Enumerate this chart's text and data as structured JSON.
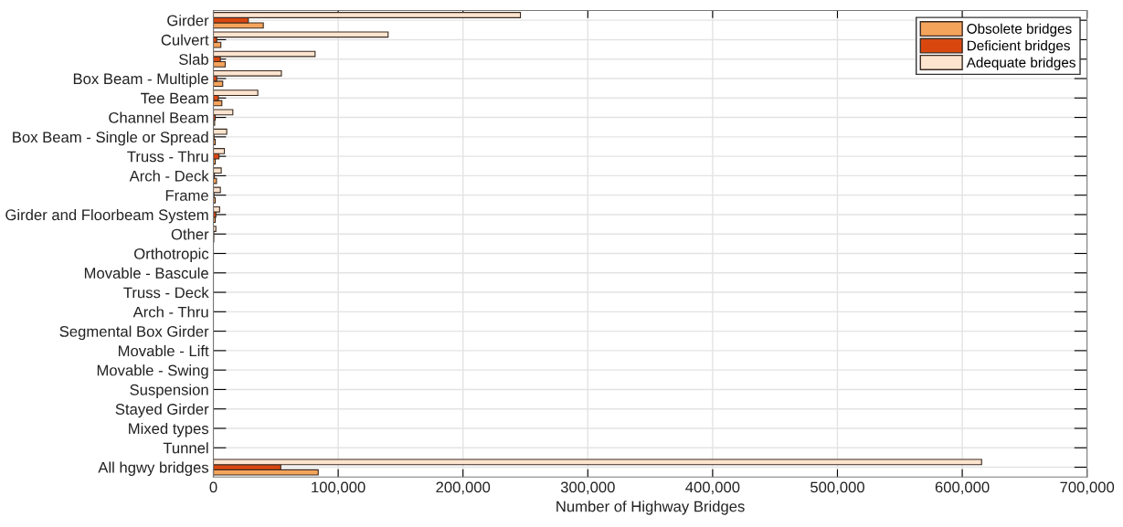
{
  "chart_data": {
    "type": "bar",
    "orientation": "horizontal",
    "xlabel": "Number of Highway Bridges",
    "categories": [
      "Girder",
      "Culvert",
      "Slab",
      "Box Beam - Multiple",
      "Tee Beam",
      "Channel Beam",
      "Box Beam - Single or Spread",
      "Truss - Thru",
      "Arch - Deck",
      "Frame",
      "Girder and Floorbeam System",
      "Other",
      "Orthotropic",
      "Movable - Bascule",
      "Truss - Deck",
      "Arch - Thru",
      "Segmental Box Girder",
      "Movable - Lift",
      "Movable - Swing",
      "Suspension",
      "Stayed Girder",
      "Mixed types",
      "Tunnel",
      "All hgwy bridges"
    ],
    "series": [
      {
        "name": "Obsolete bridges",
        "color": "#f5a45c",
        "values": [
          40000,
          6000,
          9500,
          7500,
          6800,
          1000,
          1500,
          1500,
          2500,
          1500,
          1500,
          300,
          null,
          null,
          null,
          null,
          null,
          null,
          null,
          null,
          null,
          null,
          null,
          84000
        ]
      },
      {
        "name": "Deficient bridges",
        "color": "#d9470f",
        "values": [
          28000,
          2700,
          5600,
          2700,
          4000,
          1500,
          500,
          4500,
          800,
          500,
          2000,
          300,
          null,
          null,
          null,
          null,
          null,
          null,
          null,
          null,
          null,
          null,
          null,
          54000
        ]
      },
      {
        "name": "Adequate bridges",
        "color": "#fde4cf",
        "values": [
          246000,
          140000,
          81500,
          54500,
          35600,
          15600,
          10700,
          8800,
          6300,
          5600,
          5000,
          2000,
          null,
          null,
          null,
          null,
          null,
          null,
          null,
          null,
          null,
          null,
          null,
          615500
        ]
      }
    ],
    "xlim": [
      0,
      700000
    ],
    "xticks": [
      {
        "value": 0,
        "label": "0"
      },
      {
        "value": 100000,
        "label": "100,000"
      },
      {
        "value": 200000,
        "label": "200,000"
      },
      {
        "value": 300000,
        "label": "300,000"
      },
      {
        "value": 400000,
        "label": "400,000"
      },
      {
        "value": 500000,
        "label": "500,000"
      },
      {
        "value": 600000,
        "label": "600,000"
      },
      {
        "value": 700000,
        "label": "700,000"
      }
    ],
    "grid": true,
    "legend": "top right"
  }
}
